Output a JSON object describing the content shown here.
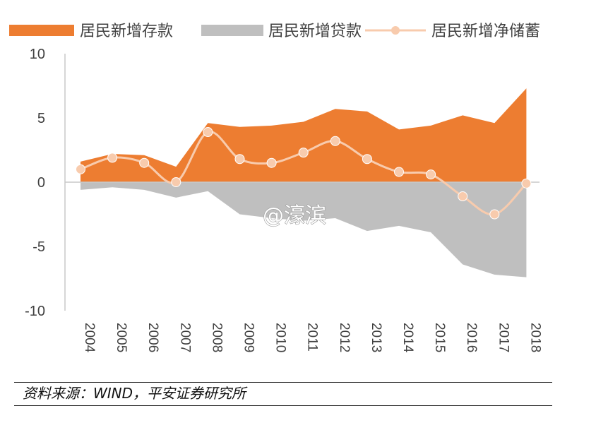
{
  "chart_data": {
    "type": "area",
    "categories": [
      "2004",
      "2005",
      "2006",
      "2007",
      "2008",
      "2009",
      "2010",
      "2011",
      "2012",
      "2013",
      "2014",
      "2015",
      "2016",
      "2017",
      "2018"
    ],
    "series": [
      {
        "name": "居民新增存款",
        "kind": "area",
        "color": "#ED7D31",
        "values": [
          1.6,
          2.2,
          2.1,
          1.2,
          4.6,
          4.3,
          4.4,
          4.7,
          5.7,
          5.5,
          4.1,
          4.4,
          5.2,
          4.6,
          7.3
        ]
      },
      {
        "name": "居民新增贷款",
        "kind": "area",
        "color": "#BFBFBF",
        "values": [
          -0.6,
          -0.4,
          -0.6,
          -1.2,
          -0.7,
          -2.5,
          -2.8,
          -3.0,
          -2.8,
          -3.8,
          -3.4,
          -3.9,
          -6.4,
          -7.2,
          -7.4
        ]
      },
      {
        "name": "居民新增净储蓄",
        "kind": "line",
        "color": "#F8CBAD",
        "values": [
          1.0,
          1.9,
          1.5,
          0.0,
          3.9,
          1.8,
          1.5,
          2.3,
          3.2,
          1.8,
          0.8,
          0.6,
          -1.1,
          -2.5,
          -0.1
        ]
      }
    ],
    "y_ticks": [
      "10",
      "5",
      "0",
      "-5",
      "-10"
    ],
    "ylim": [
      -10,
      10
    ],
    "legend_position": "top",
    "title": "",
    "xlabel": "",
    "ylabel": ""
  },
  "watermark": "@濠滨",
  "source_note": "资料来源：WIND，平安证券研究所"
}
